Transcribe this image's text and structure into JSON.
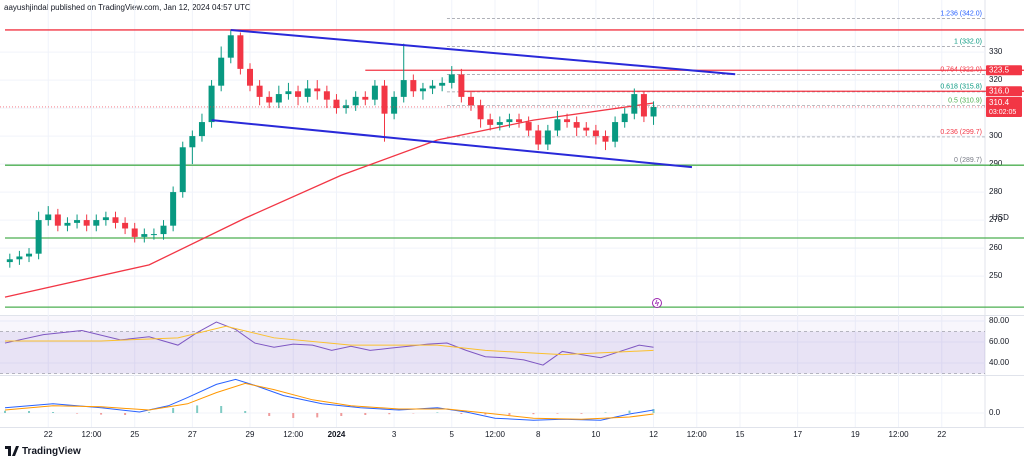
{
  "header": {
    "publisher": "aayushjindal published on TradingView.com, Jan 12, 2024 04:57 UTC"
  },
  "footer": {
    "brand": "TradingView"
  },
  "chart_data": [
    {
      "type": "candlestick",
      "x": [
        1,
        3,
        5,
        7,
        9,
        11,
        13,
        15,
        17,
        19,
        21,
        23,
        25,
        27,
        29,
        31,
        33,
        35,
        37,
        39,
        41,
        43,
        45,
        47,
        49,
        51,
        53,
        55,
        57,
        59,
        61,
        63,
        65,
        67,
        69,
        71,
        73,
        75,
        77,
        79,
        81,
        83,
        85,
        87,
        89,
        91,
        93,
        95,
        97,
        99,
        101,
        103,
        105,
        107,
        109,
        111,
        113,
        115,
        117,
        119,
        121,
        123,
        125,
        127,
        129,
        131,
        133,
        135
      ],
      "open": [
        255,
        256,
        257,
        258,
        270,
        272,
        268,
        269,
        270,
        268,
        270,
        271,
        269,
        267,
        264,
        265,
        265,
        268,
        280,
        296,
        300,
        305,
        318,
        328,
        336,
        324,
        318,
        314,
        312,
        315,
        316,
        314,
        317,
        316,
        313,
        310,
        311,
        314,
        313,
        318,
        308,
        314,
        320,
        316,
        317,
        318,
        319,
        322,
        314,
        311,
        306,
        304,
        305,
        306,
        305,
        302,
        297,
        302,
        306,
        305,
        303,
        302,
        300,
        298,
        305,
        308,
        315,
        307
      ],
      "high": [
        258,
        259,
        260,
        273,
        275,
        274,
        271,
        272,
        272,
        272,
        273,
        273,
        271,
        269,
        267,
        267,
        270,
        282,
        298,
        302,
        308,
        320,
        332,
        338,
        337,
        326,
        320,
        316,
        318,
        319,
        318,
        320,
        320,
        318,
        315,
        313,
        316,
        316,
        320,
        320,
        316,
        333,
        322,
        319,
        320,
        321,
        325,
        324,
        316,
        313,
        308,
        307,
        308,
        308,
        307,
        304,
        304,
        309,
        308,
        307,
        305,
        304,
        302,
        307,
        310,
        317,
        316,
        312.4
      ],
      "low": [
        253,
        254,
        255,
        256,
        268,
        266,
        266,
        267,
        266,
        266,
        268,
        267,
        265,
        262,
        262,
        263,
        263,
        266,
        278,
        290,
        298,
        303,
        316,
        326,
        322,
        316,
        311,
        310,
        310,
        313,
        311,
        312,
        313,
        310,
        308,
        308,
        309,
        311,
        311,
        298,
        306,
        312,
        314,
        313,
        315,
        316,
        317,
        312,
        309,
        303,
        302,
        302,
        303,
        303,
        300,
        295,
        295,
        300,
        303,
        300,
        300,
        297,
        295,
        296,
        303,
        306,
        305,
        304
      ],
      "close": [
        256,
        257,
        258,
        270,
        272,
        268,
        269,
        270,
        268,
        270,
        271,
        269,
        267,
        264,
        265,
        265,
        268,
        280,
        296,
        300,
        305,
        318,
        328,
        336,
        324,
        318,
        314,
        312,
        315,
        316,
        314,
        317,
        316,
        313,
        310,
        311,
        314,
        313,
        318,
        308,
        314,
        320,
        316,
        317,
        318,
        319,
        322,
        314,
        311,
        306,
        304,
        305,
        306,
        305,
        302,
        297,
        302,
        306,
        305,
        303,
        302,
        300,
        298,
        305,
        308,
        315,
        307,
        310.4
      ],
      "up_color": "#089981",
      "down_color": "#f23645",
      "xlim": [
        0,
        204
      ],
      "xticks": [
        {
          "value": 9,
          "label": "22"
        },
        {
          "value": 18,
          "label": "12:00"
        },
        {
          "value": 27,
          "label": "25"
        },
        {
          "value": 39,
          "label": "27"
        },
        {
          "value": 51,
          "label": "29"
        },
        {
          "value": 60,
          "label": "12:00"
        },
        {
          "value": 69,
          "label": "2024"
        },
        {
          "value": 81,
          "label": "3"
        },
        {
          "value": 93,
          "label": "5"
        },
        {
          "value": 102,
          "label": "12:00"
        },
        {
          "value": 111,
          "label": "8"
        },
        {
          "value": 123,
          "label": "10"
        },
        {
          "value": 135,
          "label": "12"
        },
        {
          "value": 144,
          "label": "12:00"
        },
        {
          "value": 153,
          "label": "15"
        },
        {
          "value": 165,
          "label": "17"
        },
        {
          "value": 177,
          "label": "19"
        },
        {
          "value": 186,
          "label": "12:00"
        },
        {
          "value": 195,
          "label": "22"
        }
      ],
      "ylim": [
        236.1,
        348.6
      ],
      "yticks": [
        250,
        260,
        270,
        280,
        290,
        300,
        310,
        320,
        330
      ],
      "y_axis_label": "USD",
      "levels": [
        {
          "value": 337.9,
          "color": "#f23645",
          "x0": 0
        },
        {
          "value": 323.5,
          "label": "323.5",
          "color": "#f23645",
          "x0": 75
        },
        {
          "value": 316,
          "label": "316.0",
          "color": "#f23645",
          "x0": 95
        },
        {
          "value": 289.6,
          "color": "#4caf50",
          "x0": 0
        },
        {
          "value": 263.6,
          "color": "#4caf50",
          "x0": 0
        },
        {
          "value": 238.9,
          "color": "#4caf50",
          "x0": 0
        }
      ],
      "last_price": {
        "value": 310.4,
        "countdown": "03:02:05",
        "color": "#f23645"
      },
      "trend_lines": [
        {
          "x": [
            47,
            152
          ],
          "values": [
            337.9,
            322.1
          ],
          "color": "#2929d9"
        },
        {
          "x": [
            43,
            143
          ],
          "values": [
            305.7,
            288.9
          ],
          "color": "#2929d9"
        }
      ],
      "ema": {
        "x": [
          0,
          30,
          50,
          70,
          90,
          110,
          135
        ],
        "values": [
          242.5,
          254,
          270.7,
          286,
          298.6,
          305.7,
          311.8
        ],
        "color": "#f23645"
      },
      "fib_start": 92,
      "fib_levels": [
        {
          "value": 289.7,
          "label": "0 (289.7)",
          "color": "#787b86"
        },
        {
          "value": 299.7,
          "label": "0.236 (299.7)",
          "color": "#f23645"
        },
        {
          "value": 310.9,
          "label": "0.5 (310.9)",
          "color": "#4caf50"
        },
        {
          "value": 315.8,
          "label": "0.618 (315.8)",
          "color": "#089981"
        },
        {
          "value": 322,
          "label": "0.764 (322.0)",
          "color": "#f23645"
        },
        {
          "value": 332,
          "label": "1 (332.0)",
          "color": "#089981"
        },
        {
          "value": 342,
          "label": "1.236 (342.0)",
          "color": "#2962ff"
        }
      ]
    },
    {
      "type": "line",
      "band": [
        30,
        70
      ],
      "band_color": "#7e57c2",
      "ylim": [
        29.5,
        84.8
      ],
      "yticks": [
        {
          "value": 40,
          "label": "40.00"
        },
        {
          "value": 60,
          "label": "60.00"
        },
        {
          "value": 80,
          "label": "80.00"
        }
      ],
      "series": [
        {
          "color": "#7e57c2",
          "x": [
            0,
            8,
            16,
            24,
            30,
            36,
            40,
            44,
            48,
            52,
            56,
            60,
            64,
            68,
            72,
            76,
            80,
            84,
            88,
            92,
            96,
            100,
            104,
            108,
            112,
            116,
            120,
            124,
            128,
            132,
            135
          ],
          "values": [
            59,
            67,
            71,
            62,
            65,
            57,
            69,
            79,
            72,
            59,
            55,
            58,
            57,
            52,
            56,
            52,
            54,
            56,
            58,
            59,
            52,
            46,
            45,
            43,
            38,
            51,
            48,
            45,
            51,
            57,
            55
          ]
        },
        {
          "color": "#fbc02d",
          "x": [
            0,
            20,
            36,
            46,
            56,
            72,
            90,
            100,
            116,
            130,
            135
          ],
          "values": [
            61,
            61,
            64,
            75,
            64,
            57,
            57,
            52,
            48,
            51,
            52
          ]
        }
      ]
    },
    {
      "type": "macd",
      "ylim": [
        -6,
        18
      ],
      "yticks": [
        {
          "value": 0,
          "label": "0.0"
        }
      ],
      "series": [
        {
          "color": "#2962ff",
          "x": [
            0,
            10,
            20,
            28,
            34,
            38,
            44,
            48,
            52,
            58,
            66,
            74,
            82,
            90,
            96,
            102,
            110,
            116,
            124,
            130,
            135
          ],
          "values": [
            2.6,
            4.6,
            2.6,
            0.5,
            3.6,
            7.7,
            14.3,
            16.8,
            13.8,
            8.7,
            4.6,
            2.6,
            1.5,
            2.6,
            0.5,
            -2.6,
            -3.6,
            -3.1,
            -3.6,
            -0.5,
            1.5
          ]
        },
        {
          "color": "#ff9800",
          "x": [
            0,
            10,
            20,
            30,
            38,
            44,
            50,
            56,
            64,
            72,
            82,
            92,
            100,
            110,
            120,
            130,
            135
          ],
          "values": [
            1.5,
            3.6,
            3.1,
            1.5,
            4.6,
            10.2,
            14.8,
            11.7,
            6.6,
            3.6,
            2,
            2,
            0,
            -2.6,
            -3.1,
            -2,
            -0.5
          ]
        }
      ],
      "histogram": {
        "x": [
          0,
          5,
          10,
          15,
          20,
          25,
          30,
          35,
          40,
          45,
          50,
          55,
          60,
          65,
          70,
          75,
          80,
          85,
          90,
          95,
          100,
          105,
          110,
          115,
          120,
          125,
          130,
          135
        ],
        "values": [
          1.1,
          1,
          0.5,
          -0.3,
          -0.8,
          -1,
          0.4,
          2.5,
          3.8,
          3.5,
          1,
          -1.5,
          -2.5,
          -2.2,
          -1.5,
          -1,
          -0.6,
          -0.2,
          0.3,
          -0.5,
          -0.8,
          -1,
          -0.6,
          -0.3,
          -0.4,
          0.3,
          1.2,
          2
        ],
        "up_color": "#80cbc4",
        "down_color": "#ef9a9a"
      }
    }
  ]
}
